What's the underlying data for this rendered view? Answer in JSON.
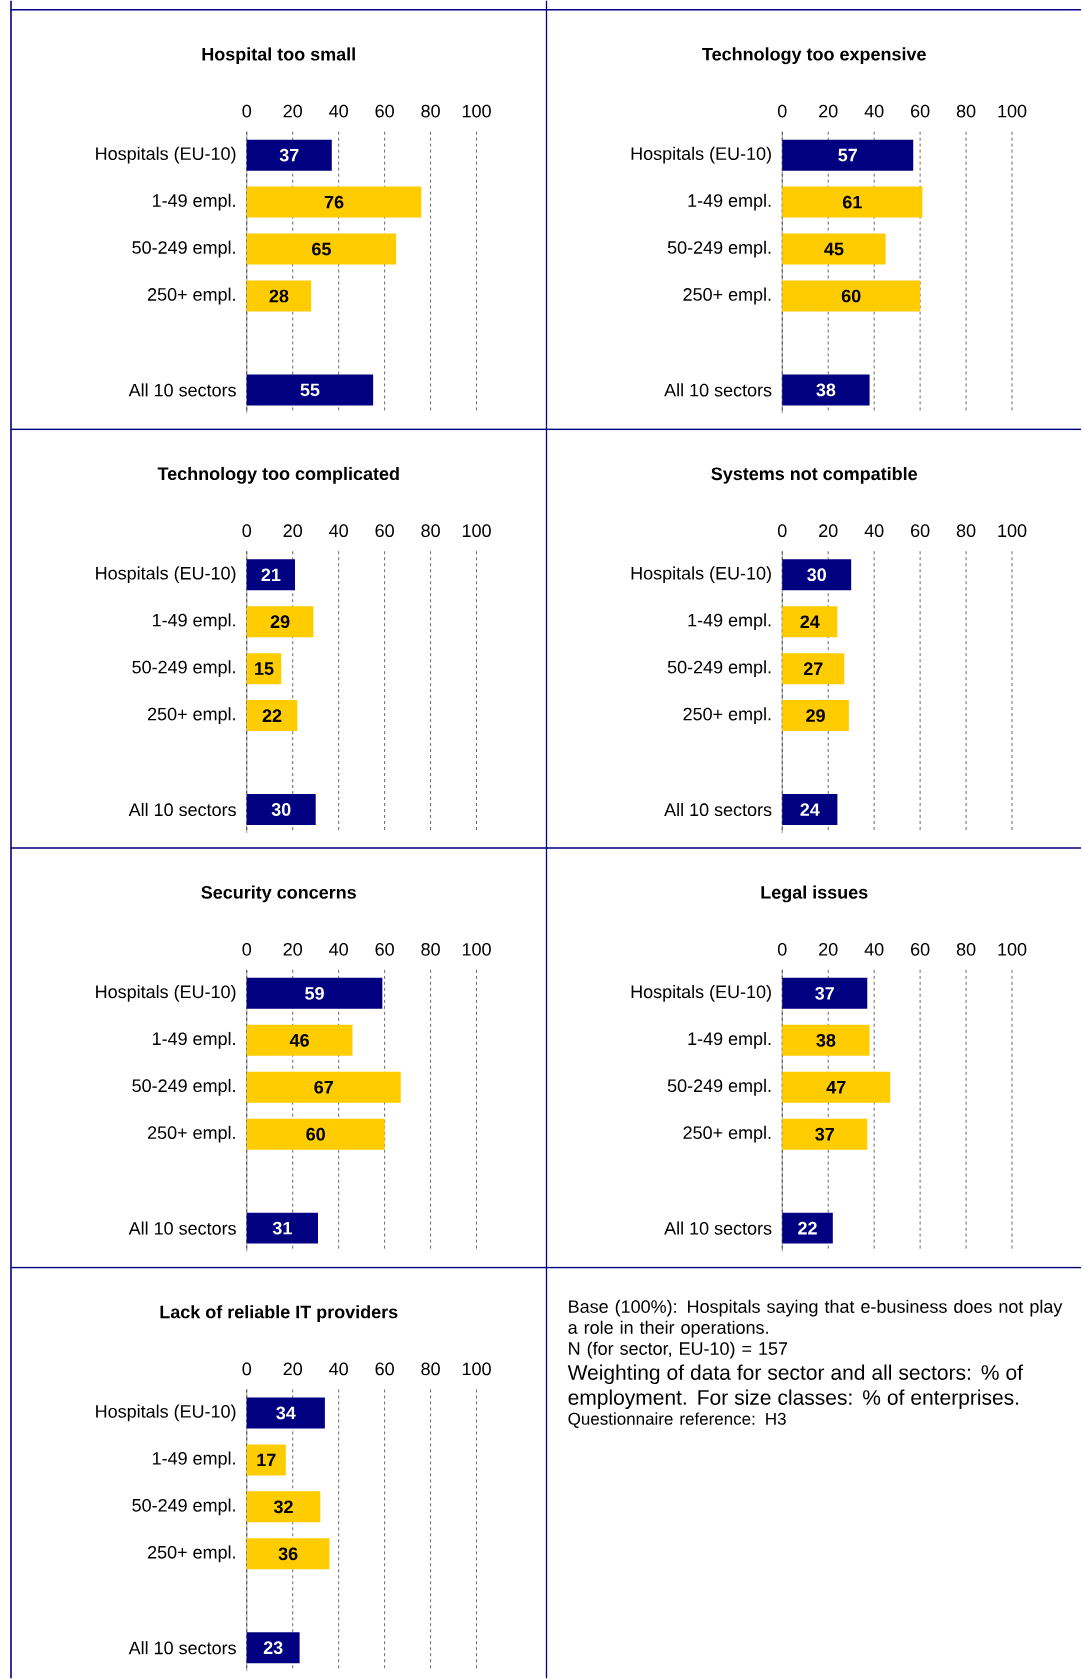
{
  "chart_data": [
    {
      "type": "bar",
      "orientation": "horizontal",
      "title": "Hospital too small",
      "categories": [
        "Hospitals (EU-10)",
        "1-49 empl.",
        "50-249 empl.",
        "250+ empl.",
        null,
        "All 10 sectors"
      ],
      "values": [
        37,
        76,
        65,
        28,
        null,
        55
      ],
      "colors": [
        "#000080",
        "#ffcc00",
        "#ffcc00",
        "#ffcc00",
        null,
        "#000080"
      ],
      "xlim": [
        0,
        100
      ],
      "xticks": [
        0,
        20,
        40,
        60,
        80,
        100
      ],
      "grid": "x",
      "data_labels": true
    },
    {
      "type": "bar",
      "orientation": "horizontal",
      "title": "Technology too expensive",
      "categories": [
        "Hospitals (EU-10)",
        "1-49 empl.",
        "50-249 empl.",
        "250+ empl.",
        null,
        "All 10 sectors"
      ],
      "values": [
        57,
        61,
        45,
        60,
        null,
        38
      ],
      "colors": [
        "#000080",
        "#ffcc00",
        "#ffcc00",
        "#ffcc00",
        null,
        "#000080"
      ],
      "xlim": [
        0,
        100
      ],
      "xticks": [
        0,
        20,
        40,
        60,
        80,
        100
      ],
      "grid": "x",
      "data_labels": true
    },
    {
      "type": "bar",
      "orientation": "horizontal",
      "title": "Technology too complicated",
      "categories": [
        "Hospitals (EU-10)",
        "1-49 empl.",
        "50-249 empl.",
        "250+ empl.",
        null,
        "All 10 sectors"
      ],
      "values": [
        21,
        29,
        15,
        22,
        null,
        30
      ],
      "colors": [
        "#000080",
        "#ffcc00",
        "#ffcc00",
        "#ffcc00",
        null,
        "#000080"
      ],
      "xlim": [
        0,
        100
      ],
      "xticks": [
        0,
        20,
        40,
        60,
        80,
        100
      ],
      "grid": "x",
      "data_labels": true
    },
    {
      "type": "bar",
      "orientation": "horizontal",
      "title": "Systems not compatible",
      "categories": [
        "Hospitals (EU-10)",
        "1-49 empl.",
        "50-249 empl.",
        "250+ empl.",
        null,
        "All 10 sectors"
      ],
      "values": [
        30,
        24,
        27,
        29,
        null,
        24
      ],
      "colors": [
        "#000080",
        "#ffcc00",
        "#ffcc00",
        "#ffcc00",
        null,
        "#000080"
      ],
      "xlim": [
        0,
        100
      ],
      "xticks": [
        0,
        20,
        40,
        60,
        80,
        100
      ],
      "grid": "x",
      "data_labels": true
    },
    {
      "type": "bar",
      "orientation": "horizontal",
      "title": "Security concerns",
      "categories": [
        "Hospitals (EU-10)",
        "1-49 empl.",
        "50-249 empl.",
        "250+ empl.",
        null,
        "All 10 sectors"
      ],
      "values": [
        59,
        46,
        67,
        60,
        null,
        31
      ],
      "colors": [
        "#000080",
        "#ffcc00",
        "#ffcc00",
        "#ffcc00",
        null,
        "#000080"
      ],
      "xlim": [
        0,
        100
      ],
      "xticks": [
        0,
        20,
        40,
        60,
        80,
        100
      ],
      "grid": "x",
      "data_labels": true
    },
    {
      "type": "bar",
      "orientation": "horizontal",
      "title": "Legal issues",
      "categories": [
        "Hospitals (EU-10)",
        "1-49 empl.",
        "50-249 empl.",
        "250+ empl.",
        null,
        "All 10 sectors"
      ],
      "values": [
        37,
        38,
        47,
        37,
        null,
        22
      ],
      "colors": [
        "#000080",
        "#ffcc00",
        "#ffcc00",
        "#ffcc00",
        null,
        "#000080"
      ],
      "xlim": [
        0,
        100
      ],
      "xticks": [
        0,
        20,
        40,
        60,
        80,
        100
      ],
      "grid": "x",
      "data_labels": true
    },
    {
      "type": "bar",
      "orientation": "horizontal",
      "title": "Lack of reliable IT providers",
      "categories": [
        "Hospitals (EU-10)",
        "1-49 empl.",
        "50-249 empl.",
        "250+ empl.",
        null,
        "All 10 sectors"
      ],
      "values": [
        34,
        17,
        32,
        36,
        null,
        23
      ],
      "colors": [
        "#000080",
        "#ffcc00",
        "#ffcc00",
        "#ffcc00",
        null,
        "#000080"
      ],
      "xlim": [
        0,
        100
      ],
      "xticks": [
        0,
        20,
        40,
        60,
        80,
        100
      ],
      "grid": "x",
      "data_labels": true
    },
    {
      "type": "other",
      "annotations": [
        "Base (100%): Hospitals saying that e-business does not play a role in their operations.",
        "N (for sector, EU-10) = 157",
        "Weighting of data for sector and all sectors: % of employment. For size classes: % of enterprises.",
        "Questionnaire reference: H3"
      ]
    }
  ]
}
